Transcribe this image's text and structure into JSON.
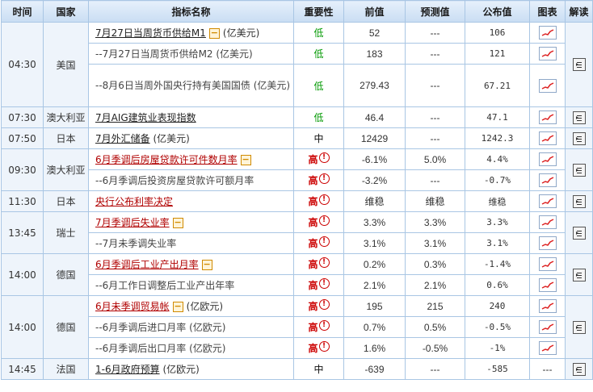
{
  "headers": [
    "时间",
    "国家",
    "指标名称",
    "重要性",
    "前值",
    "预测值",
    "公布值",
    "图表",
    "解读"
  ],
  "rows": [
    {
      "time": "04:30",
      "country": "美国",
      "name_link": "7月27日当周货币供给M1",
      "name_suffix": "(亿美元)",
      "name_sub": "",
      "importance": "低",
      "prev": "52",
      "forecast": "---",
      "actual": "106"
    },
    {
      "time": "",
      "country": "",
      "name_link": "",
      "name_suffix": "",
      "name_sub": "--7月27日当周货币供给M2 (亿美元)",
      "importance": "低",
      "prev": "183",
      "forecast": "---",
      "actual": "121"
    },
    {
      "time": "",
      "country": "",
      "name_link": "",
      "name_suffix": "",
      "name_sub": "--8月6日当周外国央行持有美国国债 (亿美元)",
      "importance": "低",
      "prev": "279.43",
      "forecast": "---",
      "actual": "67.21"
    },
    {
      "time": "07:30",
      "country": "澳大利亚",
      "name_link": "7月AIG建筑业表现指数",
      "name_suffix": "",
      "name_sub": "",
      "importance": "低",
      "prev": "46.4",
      "forecast": "---",
      "actual": "47.1"
    },
    {
      "time": "07:50",
      "country": "日本",
      "name_link": "7月外汇储备",
      "name_suffix": "(亿美元)",
      "name_sub": "",
      "importance": "中",
      "prev": "12429",
      "forecast": "---",
      "actual": "1242.3"
    },
    {
      "time": "09:30",
      "country": "澳大利亚",
      "name_link": "6月季调后房屋贷款许可件数月率",
      "name_suffix": "",
      "name_sub": "",
      "importance": "高",
      "prev": "-6.1%",
      "forecast": "5.0%",
      "actual": "4.4%"
    },
    {
      "time": "",
      "country": "",
      "name_link": "",
      "name_suffix": "",
      "name_sub": "--6月季调后投资房屋贷款许可额月率",
      "importance": "高",
      "prev": "-3.2%",
      "forecast": "---",
      "actual": "-0.7%"
    },
    {
      "time": "11:30",
      "country": "日本",
      "name_link": "央行公布利率决定",
      "name_suffix": "",
      "name_sub": "",
      "importance": "高",
      "prev": "维稳",
      "forecast": "维稳",
      "actual": "维稳"
    },
    {
      "time": "13:45",
      "country": "瑞士",
      "name_link": "7月季调后失业率",
      "name_suffix": "",
      "name_sub": "",
      "importance": "高",
      "prev": "3.3%",
      "forecast": "3.3%",
      "actual": "3.3%"
    },
    {
      "time": "",
      "country": "",
      "name_link": "",
      "name_suffix": "",
      "name_sub": "--7月未季调失业率",
      "importance": "高",
      "prev": "3.1%",
      "forecast": "3.1%",
      "actual": "3.1%"
    },
    {
      "time": "14:00",
      "country": "德国",
      "name_link": "6月季调后工业产出月率",
      "name_suffix": "",
      "name_sub": "",
      "importance": "高",
      "prev": "0.2%",
      "forecast": "0.3%",
      "actual": "-1.4%"
    },
    {
      "time": "",
      "country": "",
      "name_link": "",
      "name_suffix": "",
      "name_sub": "--6月工作日调整后工业产出年率",
      "importance": "高",
      "prev": "2.1%",
      "forecast": "2.1%",
      "actual": "0.6%"
    },
    {
      "time": "14:00",
      "country": "德国",
      "name_link": "6月未季调贸易帐",
      "name_suffix": "(亿欧元)",
      "name_sub": "",
      "importance": "高",
      "prev": "195",
      "forecast": "215",
      "actual": "240"
    },
    {
      "time": "",
      "country": "",
      "name_link": "",
      "name_suffix": "",
      "name_sub": "--6月季调后进口月率 (亿欧元)",
      "importance": "高",
      "prev": "0.7%",
      "forecast": "0.5%",
      "actual": "-0.5%"
    },
    {
      "time": "",
      "country": "",
      "name_link": "",
      "name_suffix": "",
      "name_sub": "--6月季调后出口月率 (亿欧元)",
      "importance": "高",
      "prev": "1.6%",
      "forecast": "-0.5%",
      "actual": "-1%"
    },
    {
      "time": "14:45",
      "country": "法国",
      "name_link": "1-6月政府预算",
      "name_suffix": "(亿欧元)",
      "name_sub": "",
      "importance": "中",
      "prev": "-639",
      "forecast": "---",
      "actual": "-585"
    }
  ],
  "chart_cell_dash": "---"
}
